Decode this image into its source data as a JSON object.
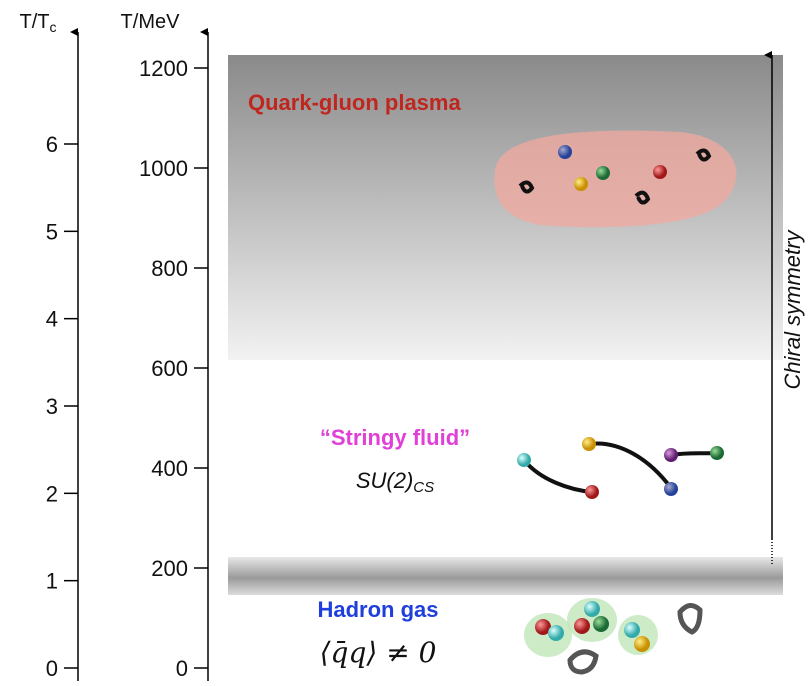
{
  "axes": [
    {
      "label": "T/T",
      "label_sub": "c",
      "ticks": [
        0,
        1,
        2,
        3,
        4,
        5,
        6
      ]
    },
    {
      "label": "T/MeV",
      "ticks": [
        0,
        200,
        400,
        600,
        800,
        1000,
        1200
      ]
    }
  ],
  "regions": {
    "qgp": "Quark-gluon plasma",
    "stringy": "“Stringy fluid”",
    "symmetry": "SU(2)",
    "symmetry_sub": "CS",
    "hadron": "Hadron gas",
    "condensate": "⟨q̄q⟩ ≠ 0"
  },
  "side_label": "Chiral symmetry"
}
